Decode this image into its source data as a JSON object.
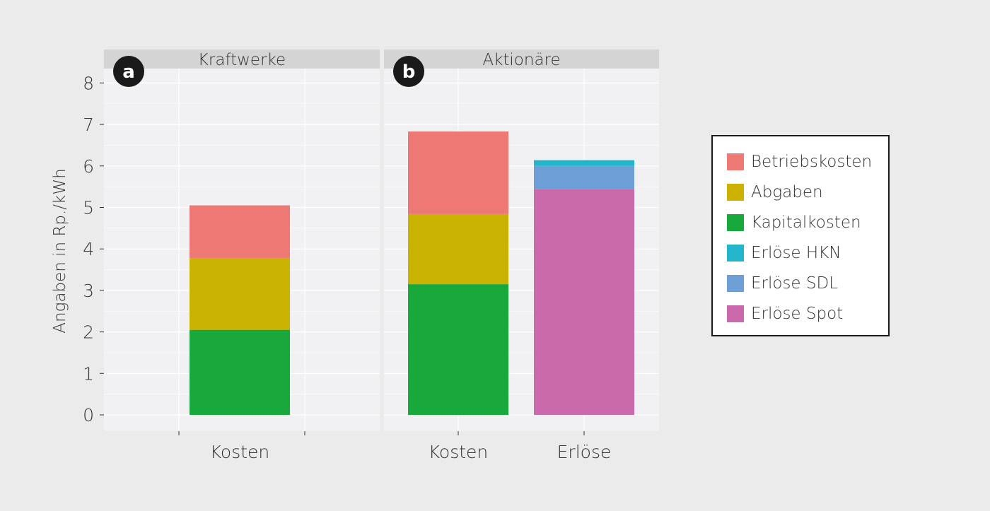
{
  "chart_data": {
    "type": "bar",
    "stacked": true,
    "ylabel": "Angaben in Rp./kWh",
    "ylim": [
      0,
      8.3
    ],
    "yticks": [
      0,
      1,
      2,
      3,
      4,
      5,
      6,
      7,
      8
    ],
    "grid": true,
    "legend_position": "right",
    "panels": [
      {
        "tag": "a",
        "title": "Kraftwerke",
        "categories": [
          "Kosten"
        ],
        "stacks": [
          {
            "category": "Kosten",
            "segments": [
              {
                "series": "Kapitalkosten",
                "value": 2.05
              },
              {
                "series": "Abgaben",
                "value": 1.73
              },
              {
                "series": "Betriebskosten",
                "value": 1.27
              }
            ]
          }
        ]
      },
      {
        "tag": "b",
        "title": "Aktionäre",
        "categories": [
          "Kosten",
          "Erlöse"
        ],
        "stacks": [
          {
            "category": "Kosten",
            "segments": [
              {
                "series": "Kapitalkosten",
                "value": 3.15
              },
              {
                "series": "Abgaben",
                "value": 1.69
              },
              {
                "series": "Betriebskosten",
                "value": 1.99
              }
            ]
          },
          {
            "category": "Erlöse",
            "segments": [
              {
                "series": "Erlöse Spot",
                "value": 5.44
              },
              {
                "series": "Erlöse SDL",
                "value": 0.56
              },
              {
                "series": "Erlöse HKN",
                "value": 0.14
              }
            ]
          }
        ]
      }
    ],
    "series": [
      {
        "name": "Betriebskosten",
        "color": "#ee7873"
      },
      {
        "name": "Abgaben",
        "color": "#c9b200"
      },
      {
        "name": "Kapitalkosten",
        "color": "#19a83b"
      },
      {
        "name": "Erlöse HKN",
        "color": "#22b5cc"
      },
      {
        "name": "Erlöse SDL",
        "color": "#6d9fd6"
      },
      {
        "name": "Erlöse Spot",
        "color": "#cb6aab"
      }
    ],
    "colors": {
      "panel_bg": "#f1f1f3",
      "strip_bg": "#d4d4d4",
      "grid": "#ffffff",
      "text": "#333333",
      "badge": "#1a1a1a"
    }
  }
}
